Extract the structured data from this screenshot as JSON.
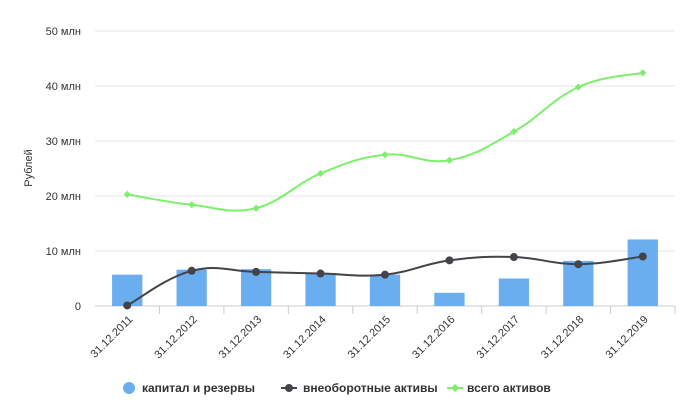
{
  "chart_data": {
    "type": "bar",
    "title": "",
    "ylabel": "Рублей",
    "xlabel": "",
    "ylim": [
      0,
      50
    ],
    "y_ticks": [
      {
        "value": 0,
        "label": "0"
      },
      {
        "value": 10,
        "label": "10 млн"
      },
      {
        "value": 20,
        "label": "20 млн"
      },
      {
        "value": 30,
        "label": "30 млн"
      },
      {
        "value": 40,
        "label": "40 млн"
      },
      {
        "value": 50,
        "label": "50 млн"
      }
    ],
    "grid": "horizontal",
    "legend_position": "bottom",
    "categories": [
      "31.12.2011",
      "31.12.2012",
      "31.12.2013",
      "31.12.2014",
      "31.12.2015",
      "31.12.2016",
      "31.12.2017",
      "31.12.2018",
      "31.12.2019"
    ],
    "series": [
      {
        "name": "капитал и резервы",
        "kind": "bar",
        "color": "#6aaef0",
        "values": [
          5.7,
          6.6,
          6.7,
          6.0,
          5.7,
          2.4,
          5.0,
          8.2,
          12.1
        ]
      },
      {
        "name": "внеоборотные активы",
        "kind": "line",
        "color": "#434348",
        "values": [
          0.1,
          6.4,
          6.2,
          5.9,
          5.7,
          8.3,
          8.9,
          7.6,
          9.0
        ]
      },
      {
        "name": "всего активов",
        "kind": "line",
        "color": "#7cf06b",
        "values": [
          20.3,
          18.4,
          17.8,
          24.1,
          27.5,
          26.5,
          31.7,
          39.8,
          42.4
        ]
      }
    ]
  }
}
